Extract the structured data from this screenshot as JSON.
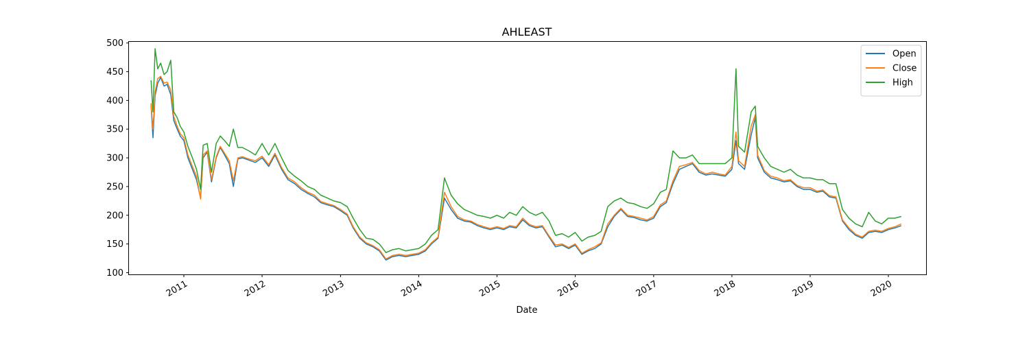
{
  "chart_data": {
    "type": "line",
    "title": "AHLEAST",
    "xlabel": "Date",
    "ylabel": "",
    "x_range": [
      "2010-04-20",
      "2020-06-25"
    ],
    "ylim": [
      97,
      502
    ],
    "y_ticks": [
      100,
      150,
      200,
      250,
      300,
      350,
      400,
      450,
      500
    ],
    "x_ticks": [
      "2011",
      "2012",
      "2013",
      "2014",
      "2015",
      "2016",
      "2017",
      "2018",
      "2019",
      "2020"
    ],
    "grid": false,
    "legend": "top-right",
    "series": [
      {
        "name": "Open",
        "color": "#1f77b4",
        "x": [
          "2010-08-01",
          "2010-08-10",
          "2010-08-20",
          "2010-09-01",
          "2010-09-15",
          "2010-10-01",
          "2010-10-15",
          "2010-11-01",
          "2010-11-15",
          "2010-12-01",
          "2010-12-15",
          "2011-01-01",
          "2011-01-20",
          "2011-02-10",
          "2011-03-01",
          "2011-03-20",
          "2011-04-01",
          "2011-04-20",
          "2011-05-10",
          "2011-06-01",
          "2011-06-20",
          "2011-07-10",
          "2011-08-01",
          "2011-08-20",
          "2011-09-10",
          "2011-10-01",
          "2011-11-01",
          "2011-12-01",
          "2012-01-01",
          "2012-02-01",
          "2012-03-01",
          "2012-04-01",
          "2012-05-01",
          "2012-06-01",
          "2012-07-01",
          "2012-08-01",
          "2012-09-01",
          "2012-10-01",
          "2012-11-01",
          "2012-12-01",
          "2013-01-01",
          "2013-02-01",
          "2013-03-01",
          "2013-04-01",
          "2013-05-01",
          "2013-06-01",
          "2013-07-01",
          "2013-08-01",
          "2013-09-01",
          "2013-10-01",
          "2013-11-01",
          "2013-12-01",
          "2014-01-01",
          "2014-02-01",
          "2014-03-01",
          "2014-04-01",
          "2014-05-01",
          "2014-06-01",
          "2014-07-01",
          "2014-08-01",
          "2014-09-01",
          "2014-10-01",
          "2014-11-01",
          "2014-12-01",
          "2015-01-01",
          "2015-02-01",
          "2015-03-01",
          "2015-04-01",
          "2015-05-01",
          "2015-06-01",
          "2015-07-01",
          "2015-08-01",
          "2015-09-01",
          "2015-10-01",
          "2015-11-01",
          "2015-12-01",
          "2016-01-01",
          "2016-02-01",
          "2016-03-01",
          "2016-04-01",
          "2016-05-01",
          "2016-06-01",
          "2016-07-01",
          "2016-08-01",
          "2016-09-01",
          "2016-10-01",
          "2016-11-01",
          "2016-12-01",
          "2017-01-01",
          "2017-02-01",
          "2017-03-01",
          "2017-04-01",
          "2017-05-01",
          "2017-06-01",
          "2017-07-01",
          "2017-08-01",
          "2017-09-01",
          "2017-10-01",
          "2017-11-01",
          "2017-12-01",
          "2018-01-01",
          "2018-01-20",
          "2018-02-01",
          "2018-03-01",
          "2018-04-01",
          "2018-04-20",
          "2018-05-01",
          "2018-06-01",
          "2018-07-01",
          "2018-08-01",
          "2018-09-01",
          "2018-10-01",
          "2018-11-01",
          "2018-12-01",
          "2019-01-01",
          "2019-02-01",
          "2019-03-01",
          "2019-04-01",
          "2019-05-01",
          "2019-06-01",
          "2019-07-01",
          "2019-08-01",
          "2019-09-01",
          "2019-10-01",
          "2019-11-01",
          "2019-12-01",
          "2020-01-01",
          "2020-02-01",
          "2020-03-01"
        ],
        "values": [
          392,
          335,
          408,
          430,
          440,
          425,
          428,
          410,
          365,
          350,
          338,
          330,
          300,
          280,
          262,
          230,
          300,
          310,
          258,
          300,
          318,
          305,
          290,
          250,
          298,
          300,
          296,
          292,
          300,
          285,
          305,
          280,
          262,
          255,
          245,
          238,
          232,
          222,
          218,
          215,
          208,
          200,
          178,
          160,
          150,
          145,
          138,
          122,
          128,
          130,
          128,
          130,
          132,
          138,
          150,
          160,
          230,
          210,
          195,
          190,
          188,
          182,
          178,
          175,
          178,
          175,
          180,
          178,
          192,
          182,
          178,
          180,
          162,
          145,
          148,
          142,
          148,
          132,
          138,
          142,
          150,
          180,
          198,
          210,
          198,
          196,
          192,
          190,
          195,
          215,
          222,
          255,
          280,
          285,
          290,
          275,
          270,
          272,
          270,
          268,
          280,
          330,
          290,
          280,
          340,
          370,
          300,
          275,
          265,
          262,
          258,
          260,
          250,
          245,
          245,
          240,
          242,
          232,
          230,
          190,
          175,
          165,
          160,
          170,
          172,
          170,
          175,
          178,
          182
        ]
      },
      {
        "name": "Close",
        "color": "#ff7f0e",
        "x": [
          "2010-08-01",
          "2010-08-10",
          "2010-08-20",
          "2010-09-01",
          "2010-09-15",
          "2010-10-01",
          "2010-10-15",
          "2010-11-01",
          "2010-11-15",
          "2010-12-01",
          "2010-12-15",
          "2011-01-01",
          "2011-01-20",
          "2011-02-10",
          "2011-03-01",
          "2011-03-20",
          "2011-04-01",
          "2011-04-20",
          "2011-05-10",
          "2011-06-01",
          "2011-06-20",
          "2011-07-10",
          "2011-08-01",
          "2011-08-20",
          "2011-09-10",
          "2011-10-01",
          "2011-11-01",
          "2011-12-01",
          "2012-01-01",
          "2012-02-01",
          "2012-03-01",
          "2012-04-01",
          "2012-05-01",
          "2012-06-01",
          "2012-07-01",
          "2012-08-01",
          "2012-09-01",
          "2012-10-01",
          "2012-11-01",
          "2012-12-01",
          "2013-01-01",
          "2013-02-01",
          "2013-03-01",
          "2013-04-01",
          "2013-05-01",
          "2013-06-01",
          "2013-07-01",
          "2013-08-01",
          "2013-09-01",
          "2013-10-01",
          "2013-11-01",
          "2013-12-01",
          "2014-01-01",
          "2014-02-01",
          "2014-03-01",
          "2014-04-01",
          "2014-05-01",
          "2014-06-01",
          "2014-07-01",
          "2014-08-01",
          "2014-09-01",
          "2014-10-01",
          "2014-11-01",
          "2014-12-01",
          "2015-01-01",
          "2015-02-01",
          "2015-03-01",
          "2015-04-01",
          "2015-05-01",
          "2015-06-01",
          "2015-07-01",
          "2015-08-01",
          "2015-09-01",
          "2015-10-01",
          "2015-11-01",
          "2015-12-01",
          "2016-01-01",
          "2016-02-01",
          "2016-03-01",
          "2016-04-01",
          "2016-05-01",
          "2016-06-01",
          "2016-07-01",
          "2016-08-01",
          "2016-09-01",
          "2016-10-01",
          "2016-11-01",
          "2016-12-01",
          "2017-01-01",
          "2017-02-01",
          "2017-03-01",
          "2017-04-01",
          "2017-05-01",
          "2017-06-01",
          "2017-07-01",
          "2017-08-01",
          "2017-09-01",
          "2017-10-01",
          "2017-11-01",
          "2017-12-01",
          "2018-01-01",
          "2018-01-20",
          "2018-02-01",
          "2018-03-01",
          "2018-04-01",
          "2018-04-20",
          "2018-05-01",
          "2018-06-01",
          "2018-07-01",
          "2018-08-01",
          "2018-09-01",
          "2018-10-01",
          "2018-11-01",
          "2018-12-01",
          "2019-01-01",
          "2019-02-01",
          "2019-03-01",
          "2019-04-01",
          "2019-05-01",
          "2019-06-01",
          "2019-07-01",
          "2019-08-01",
          "2019-09-01",
          "2019-10-01",
          "2019-11-01",
          "2019-12-01",
          "2020-01-01",
          "2020-02-01",
          "2020-03-01"
        ],
        "values": [
          395,
          350,
          415,
          438,
          442,
          430,
          432,
          418,
          372,
          355,
          342,
          335,
          305,
          285,
          268,
          228,
          305,
          312,
          262,
          302,
          320,
          308,
          295,
          260,
          300,
          302,
          298,
          295,
          303,
          288,
          308,
          283,
          265,
          258,
          248,
          240,
          235,
          224,
          220,
          217,
          210,
          202,
          180,
          162,
          152,
          147,
          140,
          124,
          130,
          132,
          130,
          132,
          134,
          140,
          152,
          162,
          240,
          215,
          198,
          192,
          190,
          184,
          180,
          177,
          180,
          177,
          182,
          180,
          195,
          184,
          180,
          182,
          164,
          148,
          150,
          144,
          150,
          134,
          140,
          145,
          152,
          185,
          200,
          212,
          200,
          198,
          195,
          192,
          198,
          218,
          225,
          260,
          285,
          288,
          292,
          278,
          272,
          275,
          272,
          270,
          285,
          345,
          295,
          285,
          355,
          375,
          305,
          278,
          268,
          265,
          260,
          262,
          252,
          248,
          248,
          242,
          244,
          234,
          232,
          192,
          178,
          167,
          162,
          172,
          174,
          172,
          177,
          180,
          185
        ]
      },
      {
        "name": "High",
        "color": "#2ca02c",
        "x": [
          "2010-08-01",
          "2010-08-10",
          "2010-08-20",
          "2010-09-01",
          "2010-09-15",
          "2010-10-01",
          "2010-10-15",
          "2010-11-01",
          "2010-11-15",
          "2010-12-01",
          "2010-12-15",
          "2011-01-01",
          "2011-01-20",
          "2011-02-10",
          "2011-03-01",
          "2011-03-20",
          "2011-04-01",
          "2011-04-20",
          "2011-05-10",
          "2011-06-01",
          "2011-06-20",
          "2011-07-10",
          "2011-08-01",
          "2011-08-20",
          "2011-09-10",
          "2011-10-01",
          "2011-11-01",
          "2011-12-01",
          "2012-01-01",
          "2012-02-01",
          "2012-03-01",
          "2012-04-01",
          "2012-05-01",
          "2012-06-01",
          "2012-07-01",
          "2012-08-01",
          "2012-09-01",
          "2012-10-01",
          "2012-11-01",
          "2012-12-01",
          "2013-01-01",
          "2013-02-01",
          "2013-03-01",
          "2013-04-01",
          "2013-05-01",
          "2013-06-01",
          "2013-07-01",
          "2013-08-01",
          "2013-09-01",
          "2013-10-01",
          "2013-11-01",
          "2013-12-01",
          "2014-01-01",
          "2014-02-01",
          "2014-03-01",
          "2014-04-01",
          "2014-05-01",
          "2014-06-01",
          "2014-07-01",
          "2014-08-01",
          "2014-09-01",
          "2014-10-01",
          "2014-11-01",
          "2014-12-01",
          "2015-01-01",
          "2015-02-01",
          "2015-03-01",
          "2015-04-01",
          "2015-05-01",
          "2015-06-01",
          "2015-07-01",
          "2015-08-01",
          "2015-09-01",
          "2015-10-01",
          "2015-11-01",
          "2015-12-01",
          "2016-01-01",
          "2016-02-01",
          "2016-03-01",
          "2016-04-01",
          "2016-05-01",
          "2016-06-01",
          "2016-07-01",
          "2016-08-01",
          "2016-09-01",
          "2016-10-01",
          "2016-11-01",
          "2016-12-01",
          "2017-01-01",
          "2017-02-01",
          "2017-03-01",
          "2017-04-01",
          "2017-05-01",
          "2017-06-01",
          "2017-07-01",
          "2017-08-01",
          "2017-09-01",
          "2017-10-01",
          "2017-11-01",
          "2017-12-01",
          "2018-01-01",
          "2018-01-20",
          "2018-02-01",
          "2018-03-01",
          "2018-04-01",
          "2018-04-20",
          "2018-05-01",
          "2018-06-01",
          "2018-07-01",
          "2018-08-01",
          "2018-09-01",
          "2018-10-01",
          "2018-11-01",
          "2018-12-01",
          "2019-01-01",
          "2019-02-01",
          "2019-03-01",
          "2019-04-01",
          "2019-05-01",
          "2019-06-01",
          "2019-07-01",
          "2019-08-01",
          "2019-09-01",
          "2019-10-01",
          "2019-11-01",
          "2019-12-01",
          "2020-01-01",
          "2020-02-01",
          "2020-03-01"
        ],
        "values": [
          435,
          380,
          490,
          455,
          465,
          445,
          450,
          470,
          380,
          370,
          355,
          345,
          320,
          300,
          280,
          245,
          322,
          325,
          275,
          325,
          338,
          330,
          320,
          350,
          318,
          318,
          312,
          305,
          325,
          305,
          325,
          300,
          278,
          268,
          260,
          250,
          245,
          235,
          230,
          225,
          222,
          215,
          195,
          175,
          160,
          158,
          150,
          135,
          140,
          142,
          138,
          140,
          142,
          150,
          165,
          175,
          265,
          235,
          220,
          210,
          205,
          200,
          198,
          195,
          200,
          195,
          205,
          200,
          215,
          205,
          200,
          205,
          190,
          165,
          168,
          162,
          170,
          155,
          162,
          165,
          172,
          215,
          225,
          230,
          222,
          220,
          215,
          212,
          220,
          240,
          245,
          312,
          300,
          300,
          305,
          290,
          290,
          290,
          290,
          290,
          300,
          455,
          320,
          310,
          380,
          390,
          320,
          300,
          285,
          280,
          275,
          280,
          270,
          265,
          265,
          262,
          262,
          255,
          255,
          210,
          195,
          185,
          180,
          205,
          190,
          185,
          195,
          195,
          198
        ]
      }
    ]
  }
}
